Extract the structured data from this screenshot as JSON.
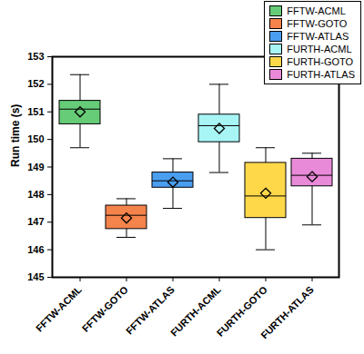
{
  "chart_data": {
    "type": "box",
    "ylabel": "Run time (s)",
    "categories": [
      "FFTW-ACML",
      "FFTW-GOTO",
      "FFTW-ATLAS",
      "FURTH-ACML",
      "FURTH-GOTO",
      "FURTH-ATLAS"
    ],
    "colors": [
      "#66cc77",
      "#f5844c",
      "#4a9ef0",
      "#a8f5f5",
      "#ffd84a",
      "#e88ad8"
    ],
    "whisker_low": [
      149.7,
      146.45,
      147.5,
      148.8,
      146.0,
      146.9
    ],
    "q1": [
      150.55,
      146.75,
      148.25,
      149.9,
      147.15,
      148.3
    ],
    "median": [
      151.1,
      147.25,
      148.5,
      150.5,
      147.95,
      148.7
    ],
    "q3": [
      151.4,
      147.6,
      148.8,
      150.9,
      149.15,
      149.3
    ],
    "whisker_high": [
      152.35,
      147.85,
      149.3,
      152.0,
      149.7,
      149.5
    ],
    "mean": [
      151.0,
      147.15,
      148.45,
      150.4,
      148.05,
      148.65
    ],
    "marker": "diamond",
    "ylim": [
      145,
      153
    ],
    "yticks": [
      145,
      146,
      147,
      148,
      149,
      150,
      151,
      152,
      153
    ],
    "grid": false,
    "legend": "top-right"
  }
}
